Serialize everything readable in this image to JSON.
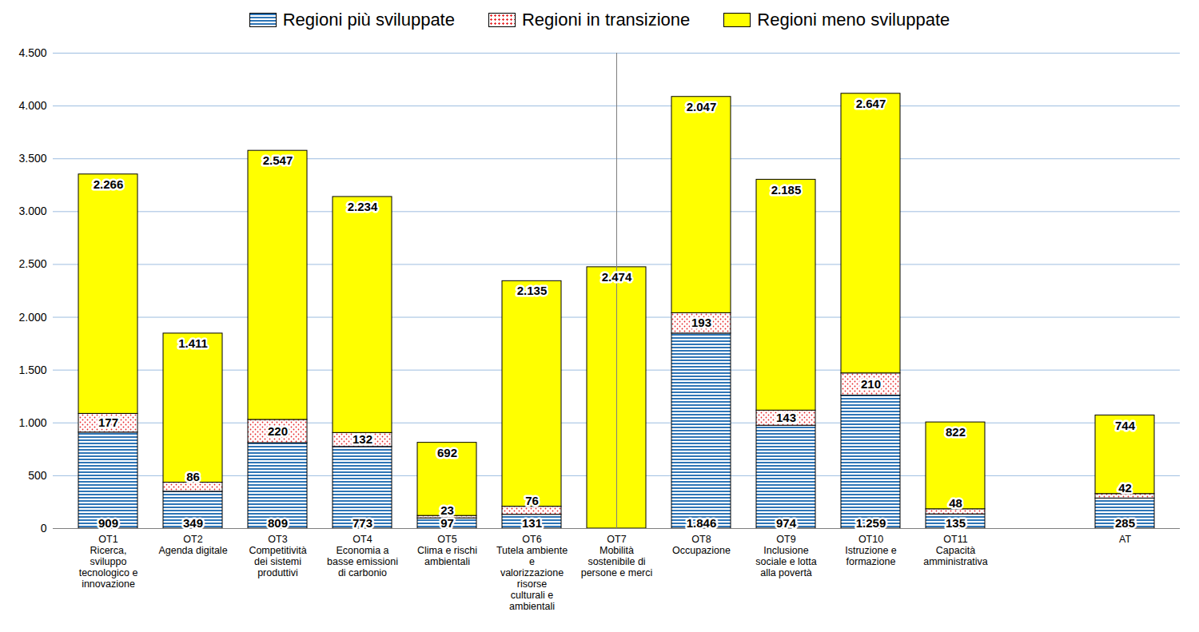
{
  "chart_data": {
    "type": "bar",
    "stacked": true,
    "data_labels": true,
    "grid": true,
    "legend": "top",
    "categories": [
      "OT1\nRicerca, sviluppo tecnologico e innovazione",
      "OT2\nAgenda digitale",
      "OT3\nCompetitività dei sistemi produttivi",
      "OT4\nEconomia a basse emissioni di carbonio",
      "OT5\nClima e rischi ambientali",
      "OT6\nTutela ambiente e valorizzazione risorse culturali e ambientali",
      "OT7\nMobilità sostenibile di persone e merci",
      "OT8\nOccupazione",
      "OT9\nInclusione sociale e lotta alla povertà",
      "OT10\nIstruzione e formazione",
      "OT11\nCapacità amministrativa",
      null,
      "AT"
    ],
    "series": [
      {
        "name": "Regioni più sviluppate",
        "color": "#2e75b6",
        "values": [
          909,
          349,
          809,
          773,
          97,
          131,
          null,
          1846,
          974,
          1259,
          135,
          null,
          285
        ],
        "value_labels": [
          "909",
          "349",
          "809",
          "773",
          "97",
          "131",
          null,
          "1.846",
          "974",
          "1.259",
          "135",
          null,
          "285"
        ]
      },
      {
        "name": "Regioni in transizione",
        "color": "#e8262a",
        "values": [
          177,
          86,
          220,
          132,
          23,
          76,
          null,
          193,
          143,
          210,
          48,
          null,
          42
        ],
        "value_labels": [
          "177",
          "86",
          "220",
          "132",
          "23",
          "76",
          null,
          "193",
          "143",
          "210",
          "48",
          null,
          "42"
        ]
      },
      {
        "name": "Regioni meno sviluppate",
        "color": "#ffff00",
        "values": [
          2266,
          1411,
          2547,
          2234,
          692,
          2135,
          2474,
          2047,
          2185,
          2647,
          822,
          null,
          744
        ],
        "value_labels": [
          "2.266",
          "1.411",
          "2.547",
          "2.234",
          "692",
          "2.135",
          "2.474",
          "2.047",
          "2.185",
          "2.647",
          "822",
          null,
          "744"
        ]
      }
    ],
    "ylim": [
      0,
      4500
    ],
    "yticks": [
      0,
      500,
      {
        "value": 1000,
        "label": "1.000"
      },
      {
        "value": 1500,
        "label": "1.500"
      },
      {
        "value": 2000,
        "label": "2.000"
      },
      {
        "value": 2500,
        "label": "2.500"
      },
      {
        "value": 3000,
        "label": "3.000"
      },
      {
        "value": 3500,
        "label": "3.500"
      },
      {
        "value": 4000,
        "label": "4.000"
      },
      {
        "value": 4500,
        "label": "4.500"
      }
    ]
  }
}
